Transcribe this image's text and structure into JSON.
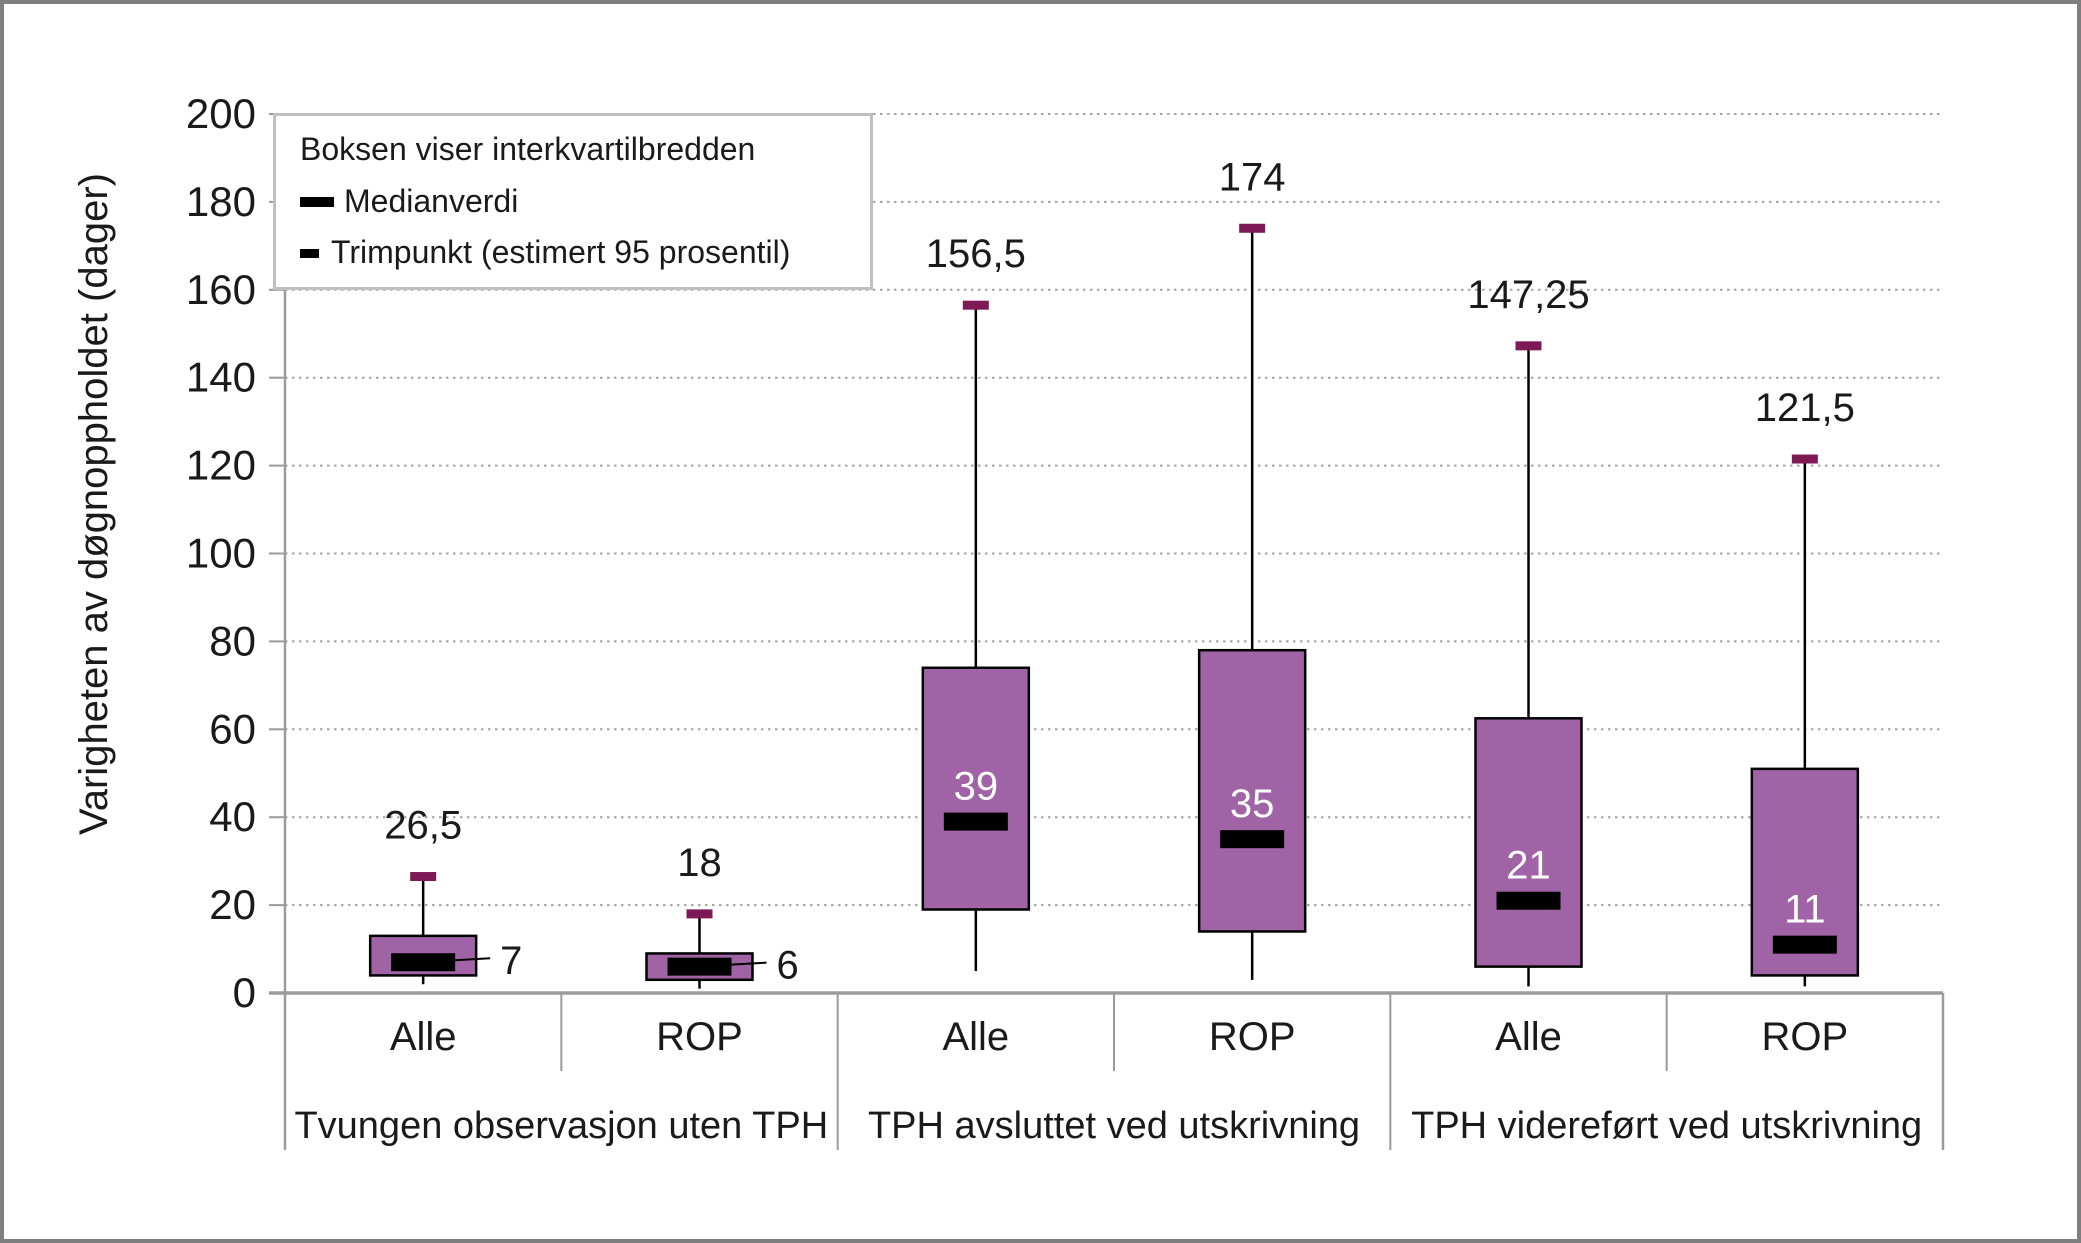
{
  "figure": {
    "background": "#ffffff",
    "frame_color": "#7f7f7f"
  },
  "chart_data": {
    "type": "boxplot",
    "title": "",
    "ylabel": "Varigheten av døgnoppholdet (dager)",
    "xlabel": "",
    "ylim": [
      0,
      200
    ],
    "ytick_step": 20,
    "ytick_labels": [
      "0",
      "20",
      "40",
      "60",
      "80",
      "100",
      "120",
      "140",
      "160",
      "180",
      "200"
    ],
    "grid": "horizontal-dotted",
    "legend": {
      "position": "top-left",
      "title": "Boksen viser interkvartilbredden",
      "median_label": "Medianverdi",
      "trim_label": "Trimpunkt (estimert 95 prosentil)"
    },
    "groups": [
      {
        "label": "Tvungen observasjon uten TPH",
        "boxes": [
          {
            "category": "Alle",
            "trim": 26.5,
            "trim_label": "26,5",
            "q3": 13,
            "median": 7,
            "median_label": "7",
            "q1": 4,
            "whisker_low": 2,
            "median_label_placement": "outside"
          },
          {
            "category": "ROP",
            "trim": 18,
            "trim_label": "18",
            "q3": 9,
            "median": 6,
            "median_label": "6",
            "q1": 3,
            "whisker_low": 1,
            "median_label_placement": "outside"
          }
        ]
      },
      {
        "label": "TPH avsluttet ved utskrivning",
        "boxes": [
          {
            "category": "Alle",
            "trim": 156.5,
            "trim_label": "156,5",
            "q3": 74,
            "median": 39,
            "median_label": "39",
            "q1": 19,
            "whisker_low": 5,
            "median_label_placement": "inside"
          },
          {
            "category": "ROP",
            "trim": 174,
            "trim_label": "174",
            "q3": 78,
            "median": 35,
            "median_label": "35",
            "q1": 14,
            "whisker_low": 3,
            "median_label_placement": "inside"
          }
        ]
      },
      {
        "label": "TPH videreført ved utskrivning",
        "boxes": [
          {
            "category": "Alle",
            "trim": 147.25,
            "trim_label": "147,25",
            "q3": 62.5,
            "median": 21,
            "median_label": "21",
            "q1": 6,
            "whisker_low": 1.5,
            "median_label_placement": "inside"
          },
          {
            "category": "ROP",
            "trim": 121.5,
            "trim_label": "121,5",
            "q3": 51,
            "median": 11,
            "median_label": "11",
            "q1": 4,
            "whisker_low": 1.5,
            "median_label_placement": "inside"
          }
        ]
      }
    ],
    "colors": {
      "box_fill": "#A064A6",
      "box_border": "#000000",
      "median_band": "#000000",
      "trim_marker": "#7D1A56",
      "gridline": "#A3A3A3",
      "axis_line": "#9B9B9B",
      "tick_text": "#1A1A1A",
      "data_label_outside": "#1A1A1A",
      "data_label_inside": "#FFFFFF"
    }
  }
}
